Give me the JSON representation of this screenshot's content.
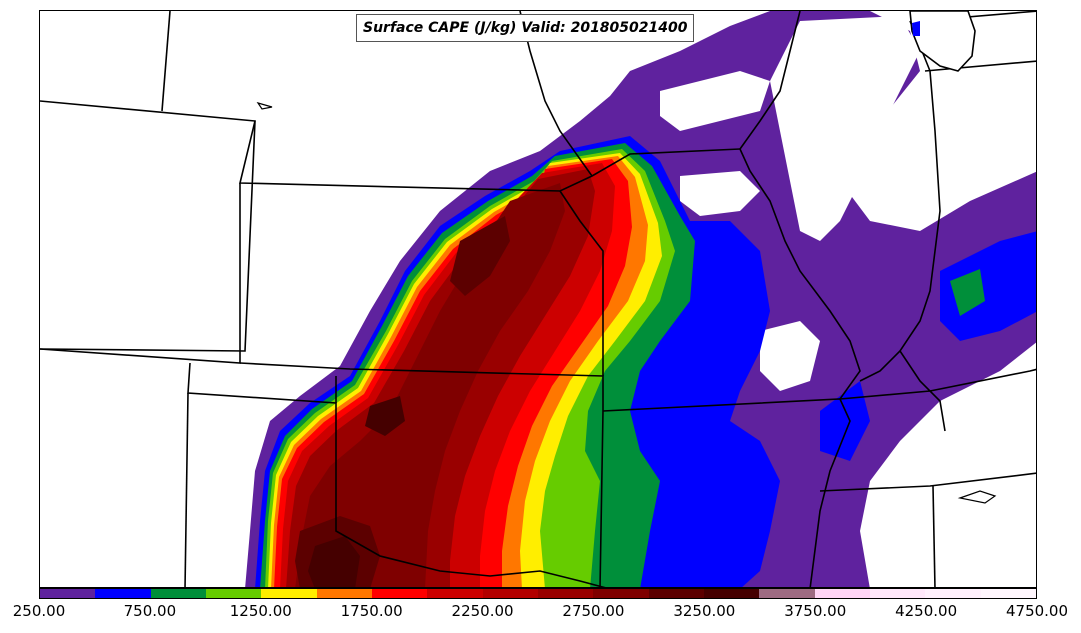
{
  "title": "Surface CAPE (J/kg) Valid: 201805021400",
  "colorbar": {
    "colors": [
      "#5f229e",
      "#0000ff",
      "#008f3a",
      "#66cc00",
      "#ffee00",
      "#ff7700",
      "#ff0000",
      "#cc0000",
      "#b30000",
      "#990000",
      "#7f0000",
      "#5c0000",
      "#450000",
      "#9e6b82",
      "#ffd4f5",
      "#ffe7fa",
      "#fff0fc",
      "#fff6fd"
    ],
    "tick_labels": [
      "250.00",
      "750.00",
      "1250.00",
      "1750.00",
      "2250.00",
      "2750.00",
      "3250.00",
      "3750.00",
      "4250.00",
      "4750.00"
    ]
  },
  "legend_colors": {
    "state_border": "#000000",
    "lowest_band": "#5f229e",
    "highest_band": "#450000"
  }
}
